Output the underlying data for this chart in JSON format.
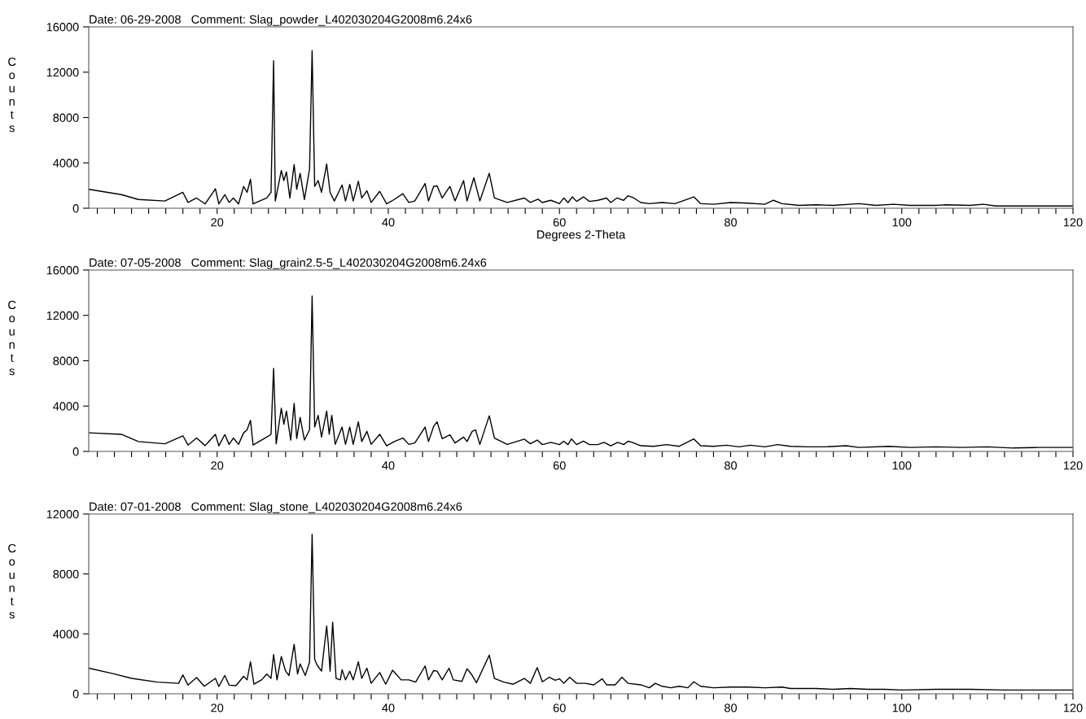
{
  "chart_data": [
    {
      "type": "line",
      "title": "Date: 06-29-2008   Comment: Slag_powder_L402030204G2008m6.24x6",
      "xlabel": "Degrees 2-Theta",
      "ylabel": "Counts",
      "color": "#000000",
      "grid": false,
      "legend": false,
      "x": [
        5,
        8.8,
        10.8,
        13.9,
        16.0,
        16.6,
        17.6,
        18.6,
        19.8,
        20.2,
        20.9,
        21.4,
        21.9,
        22.5,
        23.1,
        23.5,
        23.9,
        24.2,
        25.8,
        26.3,
        26.6,
        26.8,
        27.5,
        27.8,
        28.1,
        28.5,
        29.0,
        29.3,
        29.7,
        30.2,
        30.8,
        31.1,
        31.4,
        31.8,
        32.2,
        32.8,
        33.2,
        33.7,
        34.6,
        35.0,
        35.5,
        35.9,
        36.5,
        36.9,
        37.5,
        38.0,
        39.0,
        39.8,
        40.7,
        41.7,
        42.4,
        43.1,
        44.3,
        44.7,
        45.3,
        45.7,
        46.3,
        47.2,
        47.8,
        48.8,
        49.2,
        50.0,
        50.7,
        51.8,
        52.4,
        53.9,
        55.9,
        56.6,
        57.5,
        58,
        59,
        60,
        60.5,
        61,
        61.5,
        62,
        62.8,
        63.5,
        64.5,
        65.5,
        66,
        66.7,
        67.5,
        68,
        68.7,
        69.5,
        70.5,
        72,
        73.5,
        75.7,
        76.5,
        78,
        80,
        82,
        84,
        85,
        86,
        88,
        90,
        92,
        95,
        97,
        99,
        101,
        104,
        105,
        108,
        109.5,
        111,
        115,
        120
      ],
      "values": [
        1670,
        1200,
        770,
        640,
        1400,
        510,
        900,
        380,
        1720,
        380,
        1200,
        510,
        900,
        380,
        1920,
        1400,
        2560,
        380,
        900,
        1400,
        13000,
        640,
        3330,
        2440,
        3200,
        900,
        3850,
        1670,
        3080,
        770,
        3460,
        13900,
        1920,
        2440,
        1400,
        3900,
        1400,
        640,
        2050,
        640,
        2100,
        640,
        2380,
        900,
        1540,
        510,
        1490,
        380,
        770,
        1280,
        510,
        640,
        2180,
        640,
        1920,
        1970,
        900,
        1920,
        640,
        2440,
        640,
        2690,
        640,
        3080,
        900,
        510,
        900,
        510,
        800,
        500,
        700,
        400,
        900,
        500,
        1000,
        600,
        1000,
        600,
        700,
        900,
        500,
        900,
        700,
        1100,
        900,
        500,
        400,
        500,
        400,
        1000,
        400,
        350,
        500,
        450,
        350,
        700,
        400,
        250,
        300,
        250,
        400,
        250,
        350,
        250,
        250,
        300,
        250,
        350,
        200,
        200,
        200
      ],
      "xlim": [
        5,
        120
      ],
      "ylim": [
        0,
        16000
      ],
      "yticks": [
        0,
        4000,
        8000,
        12000,
        16000
      ],
      "xticks": [
        {
          "value": 6,
          "label": null
        },
        {
          "value": 8,
          "label": null
        },
        {
          "value": 10,
          "label": null
        },
        {
          "value": 12,
          "label": null
        },
        {
          "value": 14,
          "label": null
        },
        {
          "value": 16,
          "label": null
        },
        {
          "value": 18,
          "label": null
        },
        20,
        {
          "value": 22,
          "label": null
        },
        {
          "value": 24,
          "label": null
        },
        {
          "value": 26,
          "label": null
        },
        {
          "value": 28,
          "label": null
        },
        {
          "value": 30,
          "label": null
        },
        {
          "value": 32,
          "label": null
        },
        {
          "value": 34,
          "label": null
        },
        {
          "value": 36,
          "label": null
        },
        {
          "value": 38,
          "label": null
        },
        40,
        {
          "value": 42,
          "label": null
        },
        {
          "value": 44,
          "label": null
        },
        {
          "value": 46,
          "label": null
        },
        {
          "value": 48,
          "label": null
        },
        {
          "value": 50,
          "label": null
        },
        {
          "value": 52,
          "label": null
        },
        {
          "value": 54,
          "label": null
        },
        {
          "value": 56,
          "label": null
        },
        {
          "value": 58,
          "label": null
        },
        60,
        {
          "value": 62,
          "label": null
        },
        {
          "value": 64,
          "label": null
        },
        {
          "value": 66,
          "label": null
        },
        {
          "value": 68,
          "label": null
        },
        {
          "value": 70,
          "label": null
        },
        {
          "value": 72,
          "label": null
        },
        {
          "value": 74,
          "label": null
        },
        {
          "value": 76,
          "label": null
        },
        {
          "value": 78,
          "label": null
        },
        80,
        {
          "value": 82,
          "label": null
        },
        {
          "value": 84,
          "label": null
        },
        {
          "value": 86,
          "label": null
        },
        {
          "value": 88,
          "label": null
        },
        {
          "value": 90,
          "label": null
        },
        {
          "value": 92,
          "label": null
        },
        {
          "value": 94,
          "label": null
        },
        {
          "value": 96,
          "label": null
        },
        {
          "value": 98,
          "label": null
        },
        100,
        {
          "value": 102,
          "label": null
        },
        {
          "value": 104,
          "label": null
        },
        {
          "value": 106,
          "label": null
        },
        {
          "value": 108,
          "label": null
        },
        {
          "value": 110,
          "label": null
        },
        {
          "value": 112,
          "label": null
        },
        {
          "value": 114,
          "label": null
        },
        {
          "value": 116,
          "label": null
        },
        {
          "value": 118,
          "label": null
        },
        120
      ]
    },
    {
      "type": "line",
      "title": "Date: 07-05-2008   Comment: Slag_grain2.5-5_L402030204G2008m6.24x6",
      "ylabel": "Counts",
      "color": "#000000",
      "grid": false,
      "legend": false,
      "x": [
        5,
        8.8,
        10.8,
        13.9,
        16.0,
        16.6,
        17.6,
        18.6,
        19.8,
        20.2,
        20.9,
        21.4,
        21.9,
        22.5,
        23.1,
        23.5,
        23.9,
        24.2,
        25.8,
        26.3,
        26.6,
        26.9,
        27.5,
        27.8,
        28.1,
        28.6,
        29.0,
        29.3,
        29.7,
        30.2,
        30.8,
        31.1,
        31.4,
        31.8,
        32.2,
        32.8,
        33.1,
        33.4,
        33.8,
        34.6,
        35.0,
        35.5,
        35.9,
        36.5,
        36.9,
        37.5,
        38.0,
        39.0,
        39.8,
        40.7,
        41.7,
        42.4,
        43.1,
        44.3,
        44.7,
        45.3,
        45.7,
        46.3,
        47.2,
        47.8,
        48.8,
        49.2,
        49.8,
        50.2,
        50.7,
        51.8,
        52.4,
        53.9,
        55.9,
        56.6,
        57.4,
        58,
        59,
        60,
        60.5,
        61,
        61.4,
        62,
        62.8,
        63.5,
        64.5,
        65.2,
        66,
        66.8,
        67.5,
        68,
        68.5,
        69.5,
        71,
        72.5,
        74,
        75.7,
        76.5,
        78,
        79.5,
        81,
        82.3,
        84,
        85.5,
        87,
        89,
        91,
        93.5,
        95,
        98.5,
        101,
        104,
        107,
        110,
        113,
        116,
        120
      ],
      "values": [
        1640,
        1510,
        870,
        670,
        1380,
        560,
        1180,
        510,
        1510,
        490,
        1490,
        620,
        1180,
        620,
        1640,
        1900,
        2740,
        560,
        1260,
        1510,
        7330,
        670,
        3800,
        2400,
        3560,
        1000,
        4230,
        1130,
        3000,
        1000,
        1900,
        13700,
        2150,
        3180,
        1260,
        3560,
        1510,
        3180,
        620,
        2150,
        620,
        2150,
        620,
        2610,
        870,
        1770,
        620,
        1510,
        490,
        870,
        1180,
        620,
        740,
        2150,
        870,
        2210,
        2610,
        1130,
        1460,
        740,
        1260,
        870,
        1770,
        1900,
        620,
        3150,
        1180,
        620,
        1080,
        670,
        1000,
        600,
        800,
        600,
        900,
        600,
        1100,
        600,
        900,
        600,
        600,
        800,
        500,
        800,
        600,
        900,
        800,
        500,
        450,
        600,
        450,
        1100,
        500,
        450,
        550,
        400,
        550,
        400,
        600,
        450,
        400,
        400,
        500,
        350,
        450,
        350,
        400,
        350,
        400,
        300,
        350,
        350
      ],
      "xlim": [
        5,
        120
      ],
      "ylim": [
        0,
        16000
      ],
      "yticks": [
        0,
        4000,
        8000,
        12000,
        16000
      ],
      "xticks": [
        {
          "value": 6,
          "label": null
        },
        {
          "value": 8,
          "label": null
        },
        {
          "value": 10,
          "label": null
        },
        {
          "value": 12,
          "label": null
        },
        {
          "value": 14,
          "label": null
        },
        {
          "value": 16,
          "label": null
        },
        {
          "value": 18,
          "label": null
        },
        20,
        {
          "value": 22,
          "label": null
        },
        {
          "value": 24,
          "label": null
        },
        {
          "value": 26,
          "label": null
        },
        {
          "value": 28,
          "label": null
        },
        {
          "value": 30,
          "label": null
        },
        {
          "value": 32,
          "label": null
        },
        {
          "value": 34,
          "label": null
        },
        {
          "value": 36,
          "label": null
        },
        {
          "value": 38,
          "label": null
        },
        40,
        {
          "value": 42,
          "label": null
        },
        {
          "value": 44,
          "label": null
        },
        {
          "value": 46,
          "label": null
        },
        {
          "value": 48,
          "label": null
        },
        {
          "value": 50,
          "label": null
        },
        {
          "value": 52,
          "label": null
        },
        {
          "value": 54,
          "label": null
        },
        {
          "value": 56,
          "label": null
        },
        {
          "value": 58,
          "label": null
        },
        60,
        {
          "value": 62,
          "label": null
        },
        {
          "value": 64,
          "label": null
        },
        {
          "value": 66,
          "label": null
        },
        {
          "value": 68,
          "label": null
        },
        {
          "value": 70,
          "label": null
        },
        {
          "value": 72,
          "label": null
        },
        {
          "value": 74,
          "label": null
        },
        {
          "value": 76,
          "label": null
        },
        {
          "value": 78,
          "label": null
        },
        80,
        {
          "value": 82,
          "label": null
        },
        {
          "value": 84,
          "label": null
        },
        {
          "value": 86,
          "label": null
        },
        {
          "value": 88,
          "label": null
        },
        {
          "value": 90,
          "label": null
        },
        {
          "value": 92,
          "label": null
        },
        {
          "value": 94,
          "label": null
        },
        {
          "value": 96,
          "label": null
        },
        {
          "value": 98,
          "label": null
        },
        100,
        {
          "value": 102,
          "label": null
        },
        {
          "value": 104,
          "label": null
        },
        {
          "value": 106,
          "label": null
        },
        {
          "value": 108,
          "label": null
        },
        {
          "value": 110,
          "label": null
        },
        {
          "value": 112,
          "label": null
        },
        {
          "value": 114,
          "label": null
        },
        {
          "value": 116,
          "label": null
        },
        {
          "value": 118,
          "label": null
        },
        120
      ]
    },
    {
      "type": "line",
      "title": "Date: 07-01-2008   Comment: Slag_stone_L402030204G2008m6.24x6",
      "ylabel": "Counts",
      "color": "#000000",
      "grid": false,
      "legend": false,
      "x": [
        5,
        8,
        10,
        13,
        15.5,
        16.0,
        16.6,
        17.6,
        18.5,
        19.8,
        20.2,
        20.9,
        21.4,
        22.2,
        23.1,
        23.5,
        23.9,
        24.3,
        25.2,
        25.8,
        26.3,
        26.6,
        27.0,
        27.5,
        28.0,
        28.4,
        29.0,
        29.4,
        29.7,
        30.3,
        30.8,
        31.1,
        31.4,
        31.7,
        32.2,
        32.8,
        33.0,
        33.2,
        33.5,
        33.9,
        34.4,
        34.6,
        35.0,
        35.5,
        35.9,
        36.5,
        36.9,
        37.5,
        38.0,
        39.0,
        39.7,
        40.5,
        40.9,
        41.5,
        42.4,
        43.2,
        44.3,
        44.7,
        45.3,
        45.7,
        46.3,
        47.1,
        47.6,
        48.6,
        49.2,
        49.7,
        50.3,
        51.8,
        52.4,
        53.5,
        54.6,
        55.9,
        56.6,
        57.4,
        58,
        58.8,
        59.5,
        60,
        60.5,
        61.2,
        62,
        63,
        64,
        65,
        65.5,
        66.5,
        67.3,
        68,
        69.5,
        70.5,
        71.2,
        72,
        73,
        74,
        75,
        75.7,
        76.5,
        78,
        80,
        82,
        84,
        86,
        87,
        90,
        92,
        94,
        96,
        98,
        100,
        104,
        108,
        112,
        116,
        120
      ],
      "values": [
        1710,
        1320,
        1030,
        780,
        700,
        1260,
        580,
        1090,
        500,
        1030,
        490,
        1220,
        580,
        540,
        1170,
        930,
        2140,
        640,
        930,
        1320,
        1030,
        2620,
        930,
        2490,
        1510,
        1220,
        3300,
        1320,
        2000,
        1220,
        2100,
        10640,
        2290,
        1900,
        1510,
        4520,
        3260,
        1510,
        4780,
        1030,
        930,
        1610,
        930,
        1510,
        930,
        2140,
        1030,
        1710,
        700,
        1420,
        640,
        1570,
        1320,
        930,
        930,
        780,
        1860,
        930,
        1550,
        1510,
        930,
        1710,
        930,
        830,
        1670,
        1320,
        740,
        2580,
        1030,
        780,
        640,
        1030,
        700,
        1750,
        800,
        1100,
        900,
        1000,
        700,
        1100,
        700,
        700,
        600,
        1000,
        600,
        600,
        1100,
        700,
        600,
        400,
        700,
        500,
        400,
        500,
        400,
        800,
        500,
        400,
        450,
        450,
        400,
        450,
        350,
        350,
        300,
        350,
        300,
        300,
        250,
        300,
        300,
        250,
        250,
        250
      ],
      "xlim": [
        5,
        120
      ],
      "ylim": [
        0,
        12000
      ],
      "yticks": [
        0,
        4000,
        8000,
        12000
      ],
      "xticks": [
        {
          "value": 6,
          "label": null
        },
        {
          "value": 8,
          "label": null
        },
        {
          "value": 10,
          "label": null
        },
        {
          "value": 12,
          "label": null
        },
        {
          "value": 14,
          "label": null
        },
        {
          "value": 16,
          "label": null
        },
        {
          "value": 18,
          "label": null
        },
        20,
        {
          "value": 22,
          "label": null
        },
        {
          "value": 24,
          "label": null
        },
        {
          "value": 26,
          "label": null
        },
        {
          "value": 28,
          "label": null
        },
        {
          "value": 30,
          "label": null
        },
        {
          "value": 32,
          "label": null
        },
        {
          "value": 34,
          "label": null
        },
        {
          "value": 36,
          "label": null
        },
        {
          "value": 38,
          "label": null
        },
        40,
        {
          "value": 42,
          "label": null
        },
        {
          "value": 44,
          "label": null
        },
        {
          "value": 46,
          "label": null
        },
        {
          "value": 48,
          "label": null
        },
        {
          "value": 50,
          "label": null
        },
        {
          "value": 52,
          "label": null
        },
        {
          "value": 54,
          "label": null
        },
        {
          "value": 56,
          "label": null
        },
        {
          "value": 58,
          "label": null
        },
        60,
        {
          "value": 62,
          "label": null
        },
        {
          "value": 64,
          "label": null
        },
        {
          "value": 66,
          "label": null
        },
        {
          "value": 68,
          "label": null
        },
        {
          "value": 70,
          "label": null
        },
        {
          "value": 72,
          "label": null
        },
        {
          "value": 74,
          "label": null
        },
        {
          "value": 76,
          "label": null
        },
        {
          "value": 78,
          "label": null
        },
        80,
        {
          "value": 82,
          "label": null
        },
        {
          "value": 84,
          "label": null
        },
        {
          "value": 86,
          "label": null
        },
        {
          "value": 88,
          "label": null
        },
        {
          "value": 90,
          "label": null
        },
        {
          "value": 92,
          "label": null
        },
        {
          "value": 94,
          "label": null
        },
        {
          "value": 96,
          "label": null
        },
        {
          "value": 98,
          "label": null
        },
        100,
        {
          "value": 102,
          "label": null
        },
        {
          "value": 104,
          "label": null
        },
        {
          "value": 106,
          "label": null
        },
        {
          "value": 108,
          "label": null
        },
        {
          "value": 110,
          "label": null
        },
        {
          "value": 112,
          "label": null
        },
        {
          "value": 114,
          "label": null
        },
        {
          "value": 116,
          "label": null
        },
        {
          "value": 118,
          "label": null
        },
        120
      ]
    }
  ]
}
